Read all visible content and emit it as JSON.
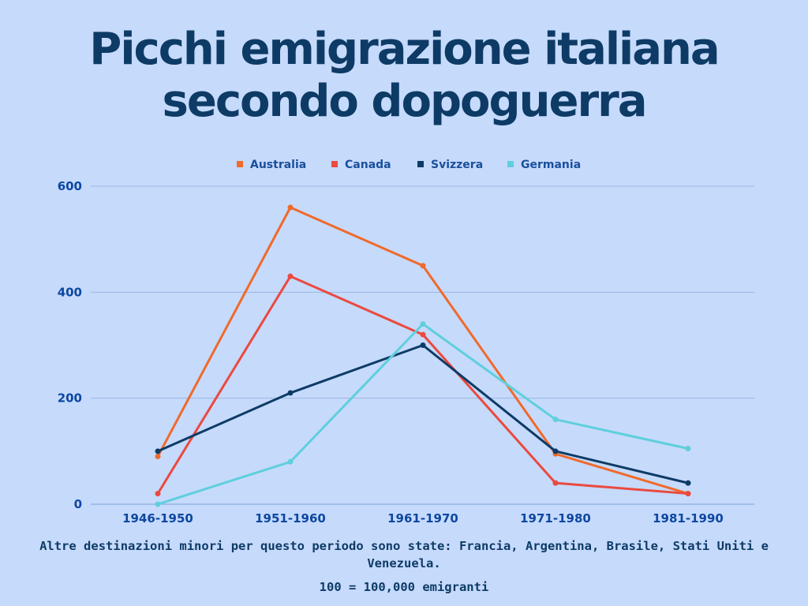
{
  "title_line1": "Picchi emigrazione italiana",
  "title_line2": "secondo dopoguerra",
  "footnote_1": "Altre destinazioni minori per questo periodo sono state: Francia, Argentina, Brasile, Stati Uniti e Venezuela.",
  "footnote_2": "100 = 100,000 emigranti",
  "colors": {
    "background": "#c6dafc",
    "title": "#0d3b66",
    "axis_labels": "#0d47a1",
    "gridline": "#9bb5e0"
  },
  "chart_data": {
    "type": "line",
    "categories": [
      "1946-1950",
      "1951-1960",
      "1961-1970",
      "1971-1980",
      "1981-1990"
    ],
    "ylim": [
      0,
      600
    ],
    "yticks": [
      0,
      200,
      400,
      600
    ],
    "grid": true,
    "legend_position": "top",
    "series": [
      {
        "name": "Australia",
        "color": "#f06a2a",
        "values": [
          90,
          560,
          450,
          95,
          20
        ]
      },
      {
        "name": "Canada",
        "color": "#ea4a3f",
        "values": [
          20,
          430,
          320,
          40,
          20
        ]
      },
      {
        "name": "Svizzera",
        "color": "#0d3b66",
        "values": [
          100,
          210,
          300,
          100,
          40
        ]
      },
      {
        "name": "Germania",
        "color": "#5fcfdc",
        "values": [
          0,
          80,
          340,
          160,
          105
        ]
      }
    ]
  }
}
